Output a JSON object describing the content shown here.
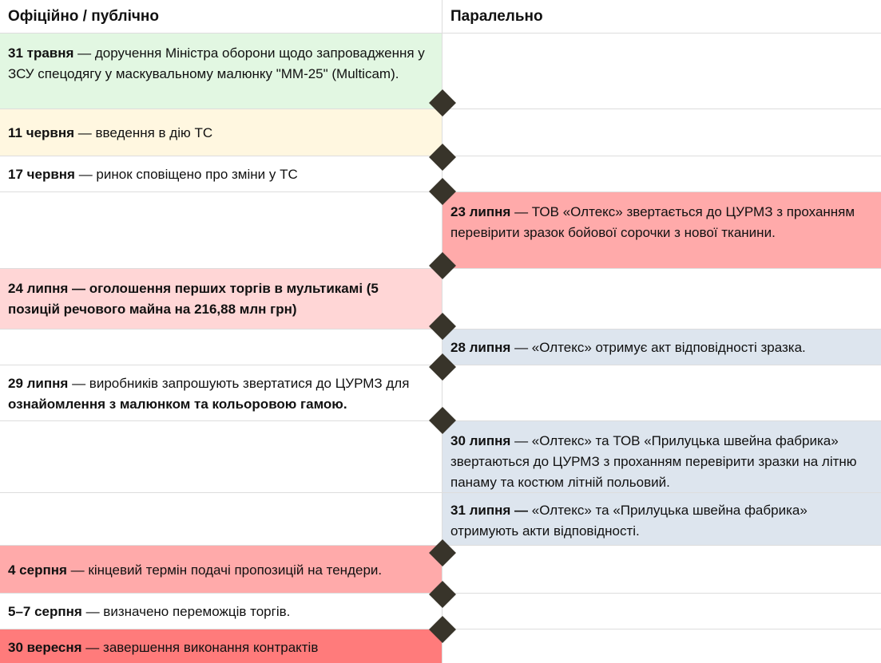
{
  "headers": {
    "left": "Офіційно / публічно",
    "right": "Паралельно"
  },
  "colors": {
    "green": "#e2f7e2",
    "yellow": "#fff7e0",
    "red": "#ffaaaa",
    "pink": "#ffd6d6",
    "blue": "#dde5ee",
    "deep_red": "#ff7b7b",
    "diamond": "#38342a"
  },
  "rows": [
    {
      "side": "left",
      "date": "31 травня",
      "text": " — доручення Міністра оборони щодо запровадження у ЗСУ спецодягу у маскувальному малюнку \"ММ-25\" (Multicam)."
    },
    {
      "side": "left",
      "date": "11 червня",
      "text": " — введення в дію ТС"
    },
    {
      "side": "left",
      "date": "17 червня",
      "text": " — ринок сповіщено про зміни у ТС"
    },
    {
      "side": "right",
      "date": "23 липня",
      "text": " — ТОВ «Олтекс» звертається до ЦУРМЗ з проханням перевірити зразок бойової сорочки з нової тканини."
    },
    {
      "side": "left",
      "date": "24 липня — оголошення перших торгів в мультикамі (5 позицій речового майна на 216,88 млн грн)",
      "text": ""
    },
    {
      "side": "right",
      "date": "28 липня",
      "text": " — «Олтекс» отримує акт відповідності зразка."
    },
    {
      "side": "left",
      "date": "29 липня",
      "text": " — виробників запрошують звертатися до ЦУРМЗ для ",
      "bold2": "ознайомлення з малюнком та кольоровою гамою."
    },
    {
      "side": "right",
      "date": "30 липня",
      "text": " — «Олтекс» та ТОВ «Прилуцька швейна фабрика» звертаються до ЦУРМЗ з проханням перевірити зразки на літню панаму та костюм літній польовий."
    },
    {
      "side": "right",
      "date": "31 липня —",
      "text": " «Олтекс» та «Прилуцька швейна фабрика» отримують акти відповідності."
    },
    {
      "side": "left",
      "date": "4 серпня",
      "text": " — кінцевий термін подачі пропозицій на тендери."
    },
    {
      "side": "left",
      "date": "5–7 серпня",
      "text": " — визначено переможців торгів."
    },
    {
      "side": "left",
      "date": "30 вересня",
      "text": " — завершення виконання контрактів"
    }
  ]
}
